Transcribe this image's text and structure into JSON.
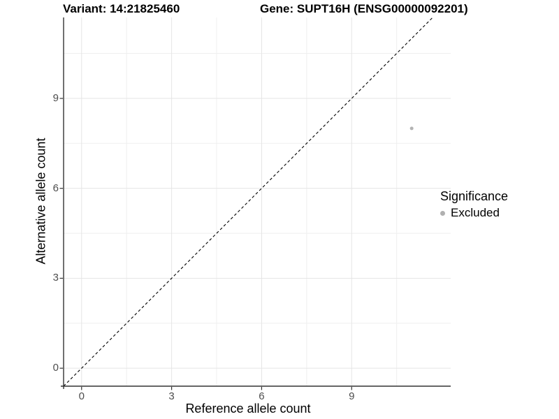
{
  "chart_data": {
    "type": "scatter",
    "titles": {
      "variant": "Variant: 14:21825460",
      "gene": "Gene: SUPT16H (ENSG00000092201)"
    },
    "xlabel": "Reference allele count",
    "ylabel": "Alternative allele count",
    "x_ticks": [
      0,
      3,
      6,
      9
    ],
    "y_ticks": [
      0,
      3,
      6,
      9
    ],
    "x_minor_gridlines": [
      1.5,
      4.5,
      7.5,
      10.5
    ],
    "y_minor_gridlines": [
      1.5,
      4.5,
      7.5,
      10.5
    ],
    "xlim": [
      -0.6,
      12.3
    ],
    "ylim": [
      -0.6,
      11.7
    ],
    "grid": true,
    "points": [
      {
        "x": 11,
        "y": 8,
        "significance": "Excluded"
      }
    ],
    "reference_line": {
      "type": "identity",
      "equation": "y = x",
      "style": "dashed",
      "color": "#000000"
    },
    "legend": {
      "title": "Significance",
      "position": "right",
      "items": [
        {
          "label": "Excluded",
          "color": "#b0b0b0"
        }
      ]
    },
    "colors": {
      "point": "#b3b3b3",
      "grid_major": "#e5e5e5",
      "grid_minor": "#efefef",
      "axis_line": "#333333",
      "tick_label": "#4d4d4d",
      "background": "#ffffff"
    }
  }
}
